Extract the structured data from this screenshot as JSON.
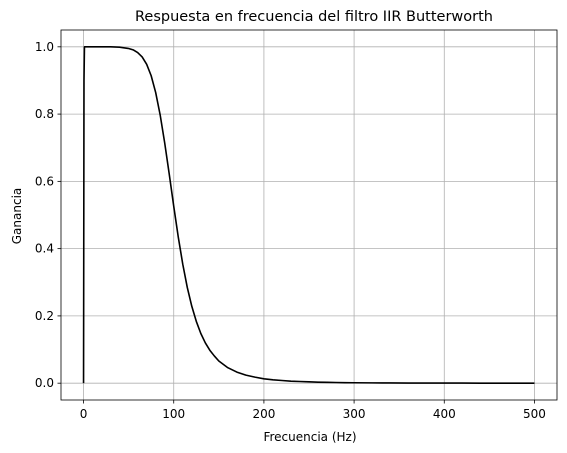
{
  "chart_data": {
    "type": "line",
    "title": "Respuesta en frecuencia del filtro IIR Butterworth",
    "xlabel": "Frecuencia (Hz)",
    "ylabel": "Ganancia",
    "xlim": [
      -25,
      525
    ],
    "ylim": [
      -0.05,
      1.05
    ],
    "grid": true,
    "x_ticks": [
      0,
      100,
      200,
      300,
      400,
      500
    ],
    "x_tick_labels": [
      "0",
      "100",
      "200",
      "300",
      "400",
      "500"
    ],
    "y_ticks": [
      0.0,
      0.2,
      0.4,
      0.6,
      0.8,
      1.0
    ],
    "y_tick_labels": [
      "0.0",
      "0.2",
      "0.4",
      "0.6",
      "0.8",
      "1.0"
    ],
    "line_color": "#000000",
    "grid_color": "#b0b0b0",
    "series": [
      {
        "x": [
          0,
          0.5,
          1,
          5,
          10,
          20,
          30,
          40,
          50,
          55,
          60,
          65,
          70,
          75,
          80,
          85,
          90,
          95,
          100,
          105,
          110,
          115,
          120,
          125,
          130,
          135,
          140,
          145,
          150,
          160,
          170,
          180,
          190,
          200,
          210,
          220,
          230,
          240,
          250,
          260,
          270,
          280,
          290,
          300,
          320,
          340,
          360,
          380,
          400,
          420,
          440,
          460,
          480,
          500
        ],
        "y": [
          0.0,
          0.9,
          1.0,
          1.0,
          1.0,
          1.0,
          1.0,
          0.999,
          0.995,
          0.991,
          0.983,
          0.97,
          0.948,
          0.914,
          0.864,
          0.797,
          0.714,
          0.622,
          0.526,
          0.435,
          0.354,
          0.285,
          0.229,
          0.184,
          0.148,
          0.12,
          0.098,
          0.081,
          0.066,
          0.046,
          0.033,
          0.024,
          0.018,
          0.013,
          0.01,
          0.008,
          0.006,
          0.005,
          0.004,
          0.003,
          0.0025,
          0.002,
          0.0016,
          0.0013,
          0.0009,
          0.0006,
          0.0004,
          0.0003,
          0.0002,
          0.0002,
          0.0001,
          0.0001,
          0.0001,
          0.0
        ]
      }
    ]
  }
}
